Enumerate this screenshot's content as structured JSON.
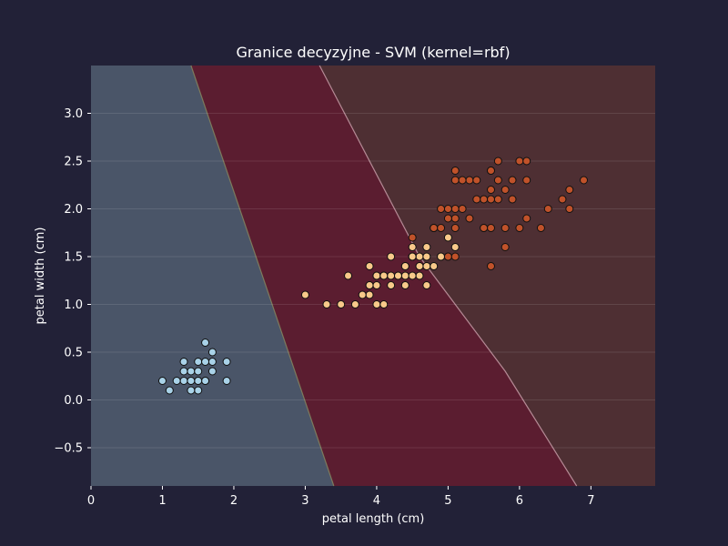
{
  "chart_data": {
    "type": "scatter",
    "title": "Granice decyzyjne - SVM (kernel=rbf)",
    "xlabel": "petal length (cm)",
    "ylabel": "petal width (cm)",
    "xlim": [
      0,
      7.9
    ],
    "ylim": [
      -0.9,
      3.5
    ],
    "xticks": [
      0,
      1,
      2,
      3,
      4,
      5,
      6,
      7
    ],
    "yticks": [
      -0.5,
      0.0,
      0.5,
      1.0,
      1.5,
      2.0,
      2.5,
      3.0
    ],
    "ytick_labels": [
      "−0.5",
      "0.0",
      "0.5",
      "1.0",
      "1.5",
      "2.0",
      "2.5",
      "3.0"
    ],
    "grid": true,
    "legend": "none",
    "background_color": "#222137",
    "regions": [
      {
        "class": 0,
        "color": "#4a5568",
        "boundary": [
          [
            1.4,
            3.5
          ],
          [
            3.4,
            -0.9
          ]
        ]
      },
      {
        "class": 1,
        "color": "#5b1d30"
      },
      {
        "class": 2,
        "color": "#4e2f33",
        "boundary": [
          [
            3.2,
            3.5
          ],
          [
            4.6,
            1.5
          ],
          [
            5.1,
            1.0
          ],
          [
            5.8,
            0.3
          ],
          [
            6.8,
            -0.9
          ]
        ]
      }
    ],
    "series": [
      {
        "color": "#a9d2e8",
        "points": [
          [
            1.4,
            0.2
          ],
          [
            1.3,
            0.2
          ],
          [
            1.5,
            0.2
          ],
          [
            1.7,
            0.4
          ],
          [
            1.4,
            0.3
          ],
          [
            1.5,
            0.1
          ],
          [
            1.6,
            0.2
          ],
          [
            1.1,
            0.1
          ],
          [
            1.2,
            0.2
          ],
          [
            1.3,
            0.4
          ],
          [
            1.7,
            0.3
          ],
          [
            1.5,
            0.4
          ],
          [
            1.0,
            0.2
          ],
          [
            1.9,
            0.2
          ],
          [
            1.6,
            0.4
          ],
          [
            1.5,
            0.3
          ],
          [
            1.3,
            0.3
          ],
          [
            1.4,
            0.1
          ],
          [
            1.6,
            0.6
          ],
          [
            1.9,
            0.4
          ],
          [
            1.7,
            0.5
          ],
          [
            1.6,
            0.2
          ],
          [
            1.5,
            0.2
          ],
          [
            1.4,
            0.2
          ]
        ]
      },
      {
        "color": "#f8c98a",
        "points": [
          [
            4.7,
            1.4
          ],
          [
            4.5,
            1.5
          ],
          [
            4.9,
            1.5
          ],
          [
            4.0,
            1.3
          ],
          [
            4.6,
            1.5
          ],
          [
            4.7,
            1.6
          ],
          [
            3.3,
            1.0
          ],
          [
            4.6,
            1.3
          ],
          [
            3.9,
            1.4
          ],
          [
            3.5,
            1.0
          ],
          [
            4.2,
            1.5
          ],
          [
            4.0,
            1.0
          ],
          [
            4.7,
            1.4
          ],
          [
            3.6,
            1.3
          ],
          [
            4.4,
            1.4
          ],
          [
            4.5,
            1.5
          ],
          [
            4.1,
            1.0
          ],
          [
            4.5,
            1.5
          ],
          [
            3.9,
            1.1
          ],
          [
            4.8,
            1.8
          ],
          [
            4.0,
            1.3
          ],
          [
            4.9,
            1.5
          ],
          [
            4.7,
            1.2
          ],
          [
            4.3,
            1.3
          ],
          [
            4.4,
            1.4
          ],
          [
            4.8,
            1.4
          ],
          [
            5.0,
            1.7
          ],
          [
            4.5,
            1.5
          ],
          [
            3.8,
            1.1
          ],
          [
            3.7,
            1.0
          ],
          [
            3.9,
            1.2
          ],
          [
            5.1,
            1.6
          ],
          [
            4.5,
            1.6
          ],
          [
            4.7,
            1.5
          ],
          [
            4.4,
            1.3
          ],
          [
            4.1,
            1.3
          ],
          [
            4.4,
            1.2
          ],
          [
            4.6,
            1.4
          ],
          [
            4.0,
            1.2
          ],
          [
            3.0,
            1.1
          ],
          [
            4.2,
            1.3
          ],
          [
            4.3,
            1.3
          ],
          [
            4.1,
            1.3
          ],
          [
            3.9,
            1.2
          ],
          [
            4.2,
            1.2
          ],
          [
            4.5,
            1.3
          ],
          [
            4.6,
            1.4
          ],
          [
            4.8,
            1.8
          ],
          [
            5.0,
            1.5
          ]
        ]
      },
      {
        "color": "#c0522a",
        "points": [
          [
            6.0,
            2.5
          ],
          [
            5.1,
            1.9
          ],
          [
            5.9,
            2.1
          ],
          [
            5.6,
            1.8
          ],
          [
            5.8,
            2.2
          ],
          [
            6.6,
            2.1
          ],
          [
            4.5,
            1.7
          ],
          [
            6.3,
            1.8
          ],
          [
            5.8,
            1.8
          ],
          [
            6.1,
            2.5
          ],
          [
            5.1,
            2.0
          ],
          [
            5.3,
            1.9
          ],
          [
            5.5,
            2.1
          ],
          [
            5.0,
            2.0
          ],
          [
            5.1,
            2.4
          ],
          [
            5.3,
            2.3
          ],
          [
            5.5,
            1.8
          ],
          [
            6.7,
            2.2
          ],
          [
            6.9,
            2.3
          ],
          [
            5.0,
            1.5
          ],
          [
            5.7,
            2.3
          ],
          [
            4.9,
            2.0
          ],
          [
            6.7,
            2.0
          ],
          [
            4.9,
            1.8
          ],
          [
            5.7,
            2.1
          ],
          [
            6.0,
            1.8
          ],
          [
            4.8,
            1.8
          ],
          [
            5.6,
            2.1
          ],
          [
            5.8,
            1.6
          ],
          [
            6.1,
            1.9
          ],
          [
            6.4,
            2.0
          ],
          [
            5.6,
            2.2
          ],
          [
            5.1,
            1.5
          ],
          [
            5.6,
            1.4
          ],
          [
            6.1,
            2.3
          ],
          [
            5.6,
            2.4
          ],
          [
            5.5,
            1.8
          ],
          [
            5.4,
            2.1
          ],
          [
            5.6,
            2.4
          ],
          [
            5.1,
            2.3
          ],
          [
            5.9,
            2.3
          ],
          [
            5.7,
            2.5
          ],
          [
            5.2,
            2.3
          ],
          [
            5.0,
            1.9
          ],
          [
            5.2,
            2.0
          ],
          [
            5.4,
            2.3
          ],
          [
            5.1,
            1.8
          ]
        ]
      }
    ]
  }
}
